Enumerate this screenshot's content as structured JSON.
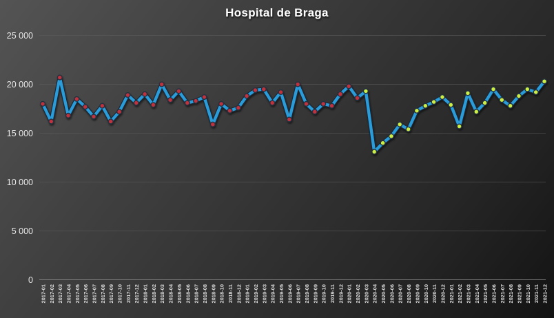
{
  "window": {
    "kind": "excel-style-chart",
    "background_top_left": "#545454",
    "background_bottom_right": "#121212"
  },
  "chart_data": {
    "type": "line",
    "title": "Hospital de Braga",
    "xlabel": "",
    "ylabel": "",
    "ylim": [
      0,
      25000
    ],
    "grid": "horizontal",
    "legend": "none",
    "y_ticks": [
      {
        "value": 25000,
        "label": "25 000"
      },
      {
        "value": 20000,
        "label": "20 000"
      },
      {
        "value": 15000,
        "label": "15 000"
      },
      {
        "value": 10000,
        "label": "10 000"
      },
      {
        "value": 5000,
        "label": "5 000"
      },
      {
        "value": 0,
        "label": "0"
      }
    ],
    "categories": [
      "2017-01",
      "2017-02",
      "2017-03",
      "2017-04",
      "2017-05",
      "2017-06",
      "2017-07",
      "2017-08",
      "2017-09",
      "2017-10",
      "2017-11",
      "2017-12",
      "2018-01",
      "2018-02",
      "2018-03",
      "2018-04",
      "2018-05",
      "2018-06",
      "2018-07",
      "2018-08",
      "2018-09",
      "2018-10",
      "2018-11",
      "2018-12",
      "2019-01",
      "2019-02",
      "2019-03",
      "2019-04",
      "2019-05",
      "2019-06",
      "2019-07",
      "2019-08",
      "2019-09",
      "2019-10",
      "2019-11",
      "2019-12",
      "2020-01",
      "2020-02",
      "2020-03",
      "2020-04",
      "2020-05",
      "2020-06",
      "2020-07",
      "2020-08",
      "2020-09",
      "2020-10",
      "2020-11",
      "2020-12",
      "2021-01",
      "2021-02",
      "2021-03",
      "2021-04",
      "2021-05",
      "2021-06",
      "2021-07",
      "2021-08",
      "2021-09",
      "2021-10",
      "2021-11",
      "2021-12"
    ],
    "values": [
      18000,
      16200,
      20700,
      16800,
      18500,
      17700,
      16700,
      17800,
      16200,
      17200,
      18900,
      18100,
      19000,
      17900,
      20000,
      18400,
      19300,
      18100,
      18300,
      18700,
      15900,
      18000,
      17300,
      17600,
      18800,
      19400,
      19500,
      18100,
      19200,
      16400,
      20000,
      18000,
      17200,
      18000,
      17800,
      19000,
      19800,
      18600,
      19300,
      13100,
      14000,
      14700,
      15900,
      15400,
      17300,
      17800,
      18200,
      18700,
      17900,
      15700,
      19100,
      17200,
      18100,
      19500,
      18400,
      17800,
      18800,
      19500,
      19200,
      20300
    ],
    "style": {
      "line_color": "#2B9CD9",
      "line_edge_color": "#1D2733",
      "marker_early_color": "#C0313C",
      "marker_late_color": "#CDEF45",
      "marker_late_from_index": 38,
      "marker_ring_color": "#243040",
      "grid_color": "#5E5E5E",
      "axis_line_color": "#8C8C8C",
      "y_label_color": "#E8E8E8",
      "x_label_color": "#DCDCDC",
      "title_color": "#FFFFFF"
    }
  }
}
